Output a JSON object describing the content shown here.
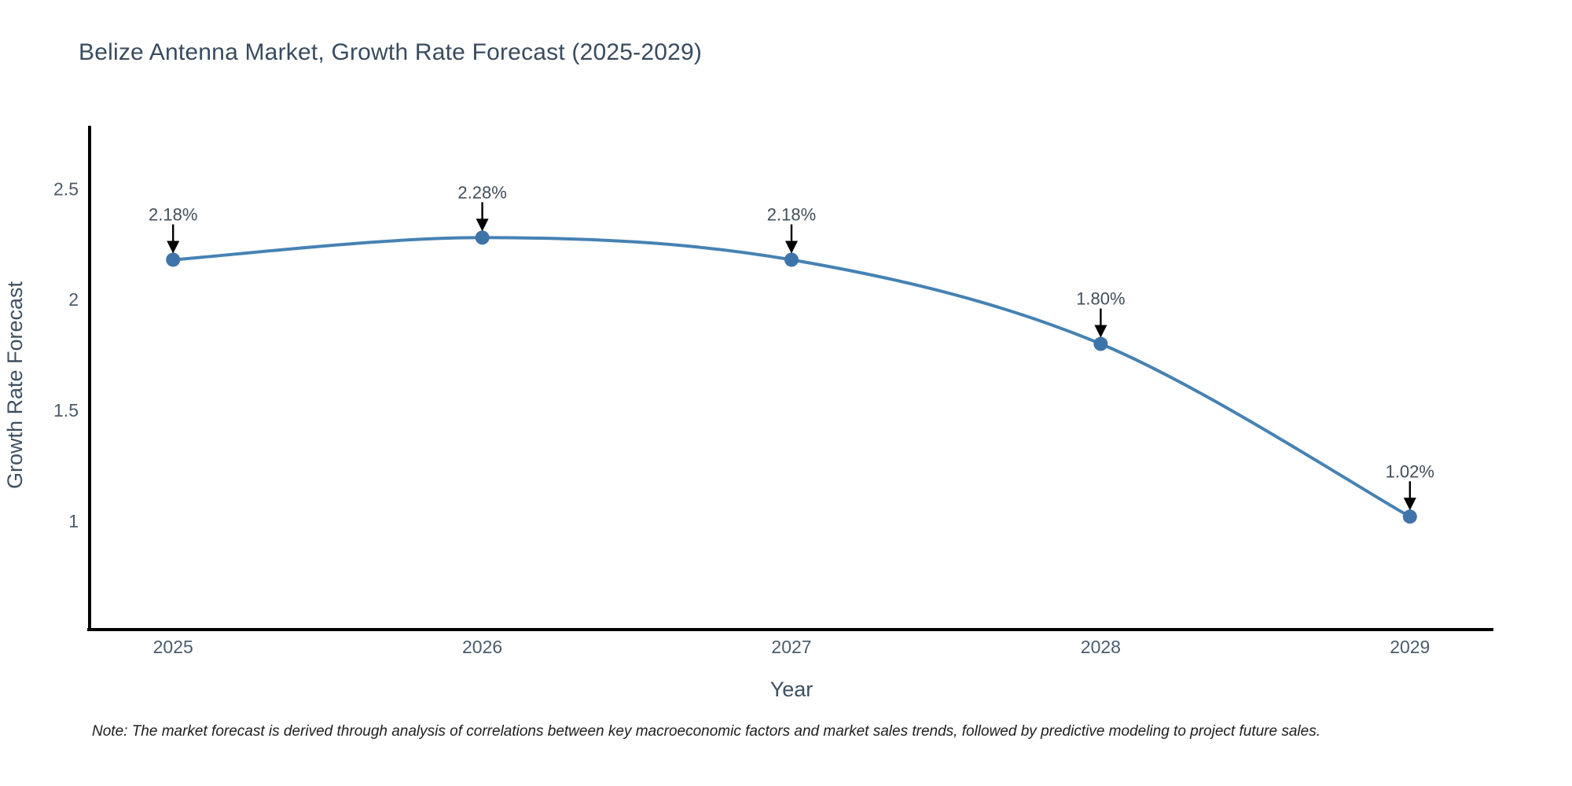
{
  "title": "Belize Antenna Market, Growth Rate Forecast (2025-2029)",
  "note": "Note: The market forecast is derived through analysis of correlations between key macroeconomic factors and market sales trends, followed by predictive modeling to project future sales.",
  "chart_data": {
    "type": "line",
    "title": "Belize Antenna Market, Growth Rate Forecast (2025-2029)",
    "xlabel": "Year",
    "ylabel": "Growth Rate Forecast",
    "x": [
      2025,
      2026,
      2027,
      2028,
      2029
    ],
    "series": [
      {
        "name": "Growth Rate Forecast",
        "values": [
          2.18,
          2.28,
          2.18,
          1.8,
          1.02
        ]
      }
    ],
    "annotation_labels": [
      "2.18%",
      "2.28%",
      "2.18%",
      "1.80%",
      "1.02%"
    ],
    "xtick_labels": [
      "2025",
      "2026",
      "2027",
      "2028",
      "2029"
    ],
    "ytick_values": [
      1,
      1.5,
      2,
      2.5
    ],
    "ytick_labels": [
      "1",
      "1.5",
      "2",
      "2.5"
    ],
    "xlim": [
      2024.73,
      2029.27
    ],
    "ylim": [
      0.51,
      2.785
    ],
    "grid": false,
    "legend": "none",
    "line_shape": "spline",
    "colors": {
      "line": "#4682b4",
      "marker": "#3e74aa",
      "axis": "#000000",
      "tick_text": "#4c5b6c",
      "axis_title_text": "#3f5061",
      "annotation_text": "#424e5a",
      "arrow": "#000000",
      "title_text": "#394b5f",
      "background": "#ffffff"
    }
  }
}
